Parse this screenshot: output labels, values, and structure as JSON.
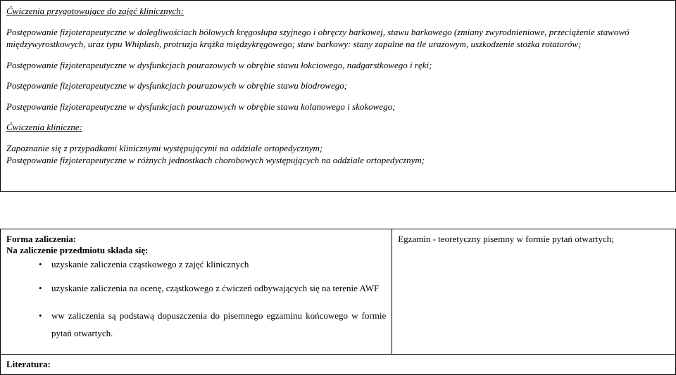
{
  "section1": {
    "heading": "Ćwiczenia przygotowujące do zajęć klinicznych:",
    "p1": "Postępowanie fizjoterapeutyczne w dolegliwościach bólowych kręgosłupa szyjnego i obręczy barkowej, stawu barkowego (zmiany zwyrodnieniowe, przeciążenie stawowó międzywyrostkowych, uraz typu Whiplash, protruzja krążka międzykręgowego; staw barkowy: stany zapalne na tle urazowym, uszkodzenie stożka rotatorów;",
    "p2": "Postępowanie fizjoterapeutyczne w dysfunkcjach pourazowych w obrębie stawu łokciowego, nadgarstkowego i ręki;",
    "p3": "Postępowanie fizjoterapeutyczne w dysfunkcjach pourazowych w obrębie stawu biodrowego;",
    "p4": "Postępowanie fizjoterapeutyczne w dysfunkcjach pourazowych w obrębie stawu kolanowego i skokowego;",
    "heading2": "Ćwiczenia kliniczne:",
    "p5": "Zapoznanie się z przypadkami klinicznymi występującymi na oddziale ortopedycznym;",
    "p6": "Postępowanie fizjoterapeutyczne w różnych jednostkach chorobowych występujących na oddziale ortopedycznym;"
  },
  "section2": {
    "left_heading1": "Forma zaliczenia:",
    "left_heading2": "Na zaliczenie przedmiotu składa się:",
    "bullets": [
      "uzyskanie zaliczenia cząstkowego z zajęć klinicznych",
      "uzyskanie zaliczenia na ocenę, cząstkowego z ćwiczeń odbywających się na terenie AWF",
      "ww zaliczenia są podstawą dopuszczenia do pisemnego egzaminu końcowego w formie pytań otwartych."
    ],
    "right_text": "Egzamin  - teoretyczny pisemny w formie pytań otwartych;",
    "lit_label": "Literatura:"
  }
}
